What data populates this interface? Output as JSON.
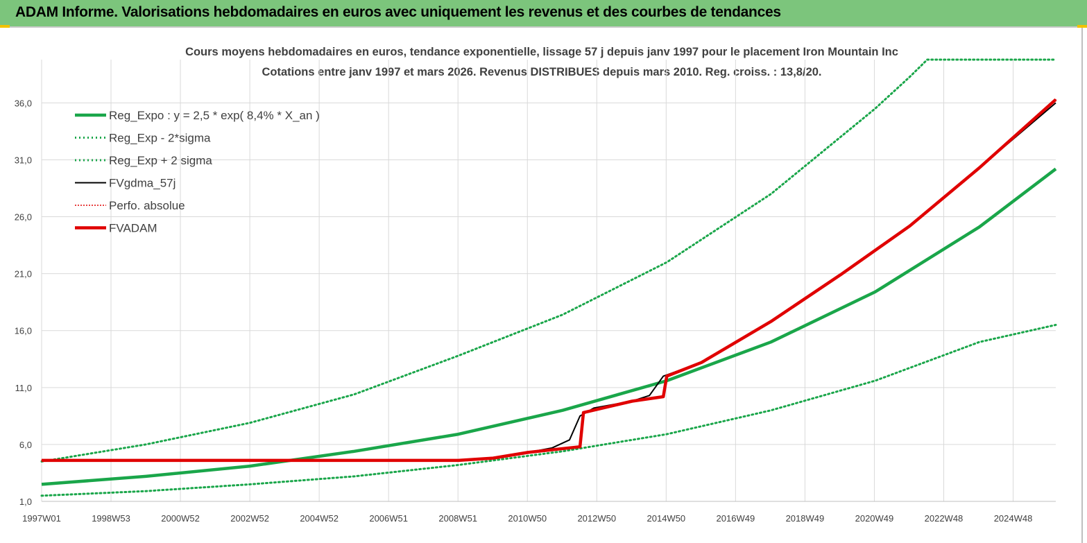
{
  "header": {
    "title": "ADAM Informe. Valorisations hebdomadaires en euros avec uniquement les revenus et des courbes de tendances"
  },
  "colors": {
    "banner": "#7cc57c",
    "trend_green": "#1aa64a",
    "adam_red": "#e00000",
    "fv_black": "#000000"
  },
  "chart_data": {
    "type": "line",
    "title": "Cours moyens hebdomadaires en euros, tendance exponentielle, lissage 57 j depuis janv 1997 pour le placement Iron Mountain Inc",
    "subtitle": "Cotations entre janv 1997 et mars 2026. Revenus DISTRIBUES depuis mars 2010. Reg. croiss. : 13,8/20.",
    "x_tick_labels": [
      "1997W01",
      "1998W53",
      "2000W52",
      "2002W52",
      "2004W52",
      "2006W51",
      "2008W51",
      "2010W50",
      "2012W50",
      "2014W50",
      "2016W49",
      "2018W49",
      "2020W49",
      "2022W48",
      "2024W48"
    ],
    "y_tick_labels": [
      "1,0",
      "6,0",
      "11,0",
      "16,0",
      "21,0",
      "26,0",
      "31,0",
      "36,0"
    ],
    "ylim": [
      1,
      39.8
    ],
    "xlim": [
      1997.0,
      2026.2
    ],
    "grid": true,
    "legend_position": "top-left",
    "series": [
      {
        "name": "Reg_Expo : y = 2,5 * exp( 8,4% *  X_an )",
        "style": "solid-thick",
        "color": "#1aa64a",
        "points": [
          [
            1997.0,
            2.5
          ],
          [
            2000.0,
            3.2
          ],
          [
            2003.0,
            4.1
          ],
          [
            2006.0,
            5.4
          ],
          [
            2009.0,
            6.9
          ],
          [
            2012.0,
            9.0
          ],
          [
            2015.0,
            11.6
          ],
          [
            2018.0,
            15.0
          ],
          [
            2021.0,
            19.4
          ],
          [
            2024.0,
            25.1
          ],
          [
            2026.2,
            30.2
          ]
        ]
      },
      {
        "name": "Reg_Exp - 2*sigma",
        "style": "dotted",
        "color": "#1aa64a",
        "points": [
          [
            1997.0,
            1.5
          ],
          [
            2000.0,
            1.9
          ],
          [
            2003.0,
            2.5
          ],
          [
            2006.0,
            3.2
          ],
          [
            2009.0,
            4.2
          ],
          [
            2012.0,
            5.4
          ],
          [
            2015.0,
            6.9
          ],
          [
            2018.0,
            9.0
          ],
          [
            2021.0,
            11.6
          ],
          [
            2024.0,
            15.0
          ],
          [
            2026.2,
            16.5
          ]
        ]
      },
      {
        "name": "Reg_Exp + 2 sigma",
        "style": "dotted",
        "color": "#1aa64a",
        "points": [
          [
            1997.0,
            4.5
          ],
          [
            2000.0,
            6.0
          ],
          [
            2003.0,
            7.9
          ],
          [
            2006.0,
            10.4
          ],
          [
            2009.0,
            13.8
          ],
          [
            2012.0,
            17.4
          ],
          [
            2015.0,
            22.0
          ],
          [
            2018.0,
            28.0
          ],
          [
            2021.0,
            35.5
          ],
          [
            2022.0,
            38.3
          ],
          [
            2022.5,
            39.8
          ],
          [
            2026.2,
            39.8
          ]
        ]
      },
      {
        "name": "FVgdma_57j",
        "style": "solid-thin",
        "color": "#000000",
        "points": [
          [
            1997.0,
            4.6
          ],
          [
            2009.0,
            4.6
          ],
          [
            2010.0,
            4.8
          ],
          [
            2011.0,
            5.3
          ],
          [
            2011.7,
            5.7
          ],
          [
            2012.2,
            6.4
          ],
          [
            2012.5,
            8.5
          ],
          [
            2012.9,
            9.2
          ],
          [
            2014.0,
            9.8
          ],
          [
            2014.5,
            10.3
          ],
          [
            2014.9,
            12.0
          ],
          [
            2016.0,
            13.2
          ],
          [
            2018.0,
            16.8
          ],
          [
            2020.0,
            20.9
          ],
          [
            2022.0,
            25.2
          ],
          [
            2024.0,
            30.3
          ],
          [
            2026.2,
            36.0
          ]
        ]
      },
      {
        "name": "Perfo. absolue",
        "style": "dotted-thin",
        "color": "#e00000",
        "points": [
          [
            1997.0,
            4.6
          ],
          [
            2009.0,
            4.6
          ],
          [
            2010.0,
            4.8
          ],
          [
            2011.0,
            5.3
          ],
          [
            2012.5,
            5.8
          ],
          [
            2012.6,
            8.8
          ],
          [
            2014.0,
            9.8
          ],
          [
            2014.9,
            10.2
          ],
          [
            2015.0,
            12.0
          ],
          [
            2016.0,
            13.2
          ],
          [
            2018.0,
            16.8
          ],
          [
            2020.0,
            20.9
          ],
          [
            2022.0,
            25.2
          ],
          [
            2024.0,
            30.3
          ],
          [
            2026.2,
            36.3
          ]
        ]
      },
      {
        "name": "FVADAM",
        "style": "solid-thick",
        "color": "#e00000",
        "points": [
          [
            1997.0,
            4.6
          ],
          [
            2009.0,
            4.6
          ],
          [
            2010.0,
            4.8
          ],
          [
            2011.0,
            5.3
          ],
          [
            2012.5,
            5.8
          ],
          [
            2012.6,
            8.8
          ],
          [
            2014.0,
            9.8
          ],
          [
            2014.9,
            10.2
          ],
          [
            2015.0,
            12.0
          ],
          [
            2016.0,
            13.2
          ],
          [
            2018.0,
            16.8
          ],
          [
            2020.0,
            20.9
          ],
          [
            2022.0,
            25.2
          ],
          [
            2024.0,
            30.3
          ],
          [
            2026.2,
            36.3
          ]
        ]
      }
    ]
  }
}
